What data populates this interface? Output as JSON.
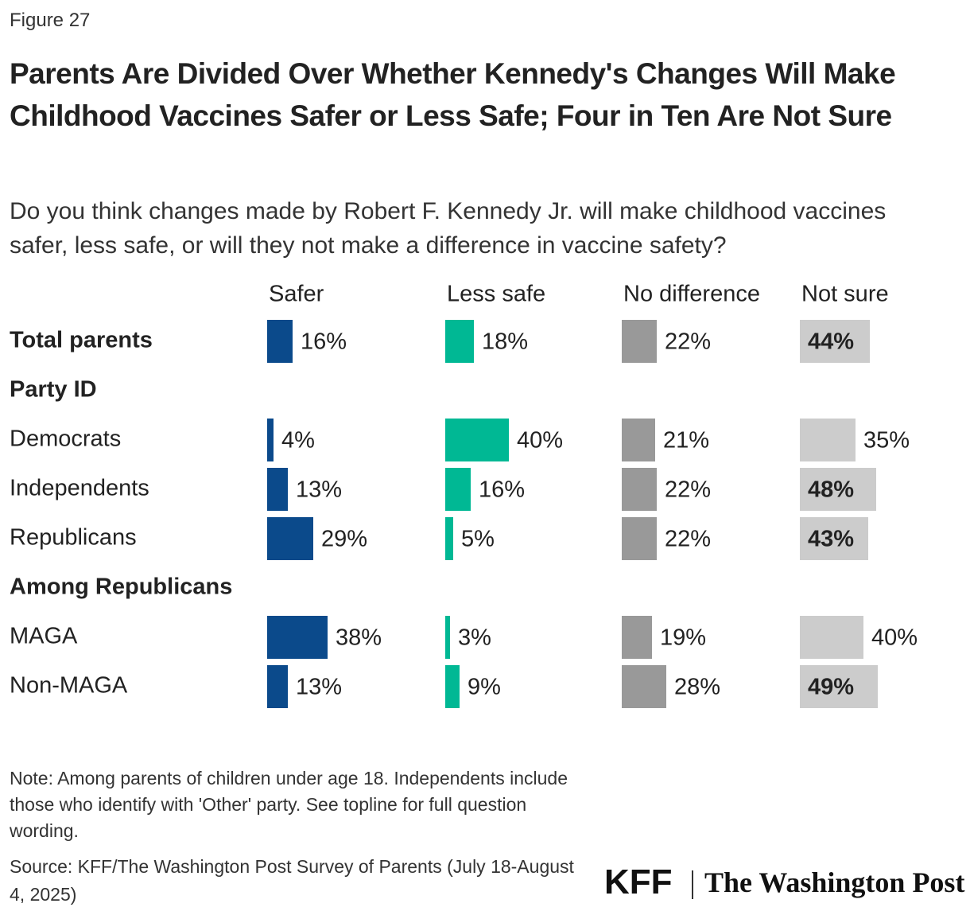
{
  "figure_label": "Figure 27",
  "chart_data": {
    "type": "bar",
    "title": "Parents Are Divided Over Whether Kennedy's Changes Will Make Childhood Vaccines Safer or Less Safe; Four in Ten Are Not Sure",
    "subtitle": "Do you think changes made by Robert F. Kennedy Jr. will make childhood vaccines safer, less safe, or will they not make a difference in vaccine safety?",
    "categories": [
      "Total parents",
      "Party ID",
      "Democrats",
      "Independents",
      "Republicans",
      "Among Republicans",
      "MAGA",
      "Non-MAGA"
    ],
    "series": [
      {
        "name": "Safer",
        "color": "#0b4a8b",
        "values": [
          16,
          null,
          4,
          13,
          29,
          null,
          38,
          13
        ],
        "value_labels": [
          "16%",
          null,
          "4%",
          "13%",
          "29%",
          null,
          "38%",
          "13%"
        ]
      },
      {
        "name": "Less safe",
        "color": "#00b894",
        "values": [
          18,
          null,
          40,
          16,
          5,
          null,
          3,
          9
        ],
        "value_labels": [
          "18%",
          null,
          "40%",
          "16%",
          "5%",
          null,
          "3%",
          "9%"
        ]
      },
      {
        "name": "No difference",
        "color": "#999999",
        "values": [
          22,
          null,
          21,
          22,
          22,
          null,
          19,
          28
        ],
        "value_labels": [
          "22%",
          null,
          "21%",
          "22%",
          "22%",
          null,
          "19%",
          "28%"
        ]
      },
      {
        "name": "Not sure",
        "color": "#cccccc",
        "values": [
          44,
          null,
          35,
          48,
          43,
          null,
          40,
          49
        ],
        "value_labels": [
          "44%",
          null,
          "35%",
          "48%",
          "43%",
          null,
          "40%",
          "49%"
        ]
      }
    ],
    "xlim": [
      0,
      100
    ],
    "note": "Note: Among parents of children under age 18. Independents include those who identify with 'Other' party. See topline for full question wording.",
    "source": "Source: KFF/The Washington Post Survey of Parents (July 18-August 4, 2025)"
  },
  "logos": [
    "KFF",
    "The Washington Post"
  ]
}
